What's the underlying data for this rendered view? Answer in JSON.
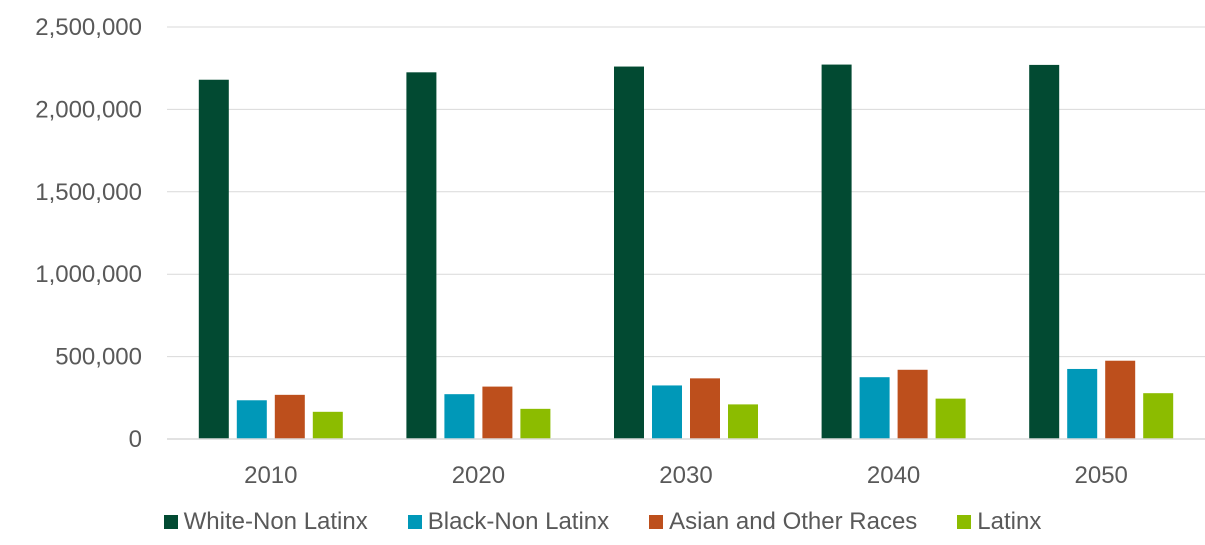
{
  "chart_data": {
    "type": "bar",
    "categories": [
      "2010",
      "2020",
      "2030",
      "2040",
      "2050"
    ],
    "series": [
      {
        "name": "White-Non Latinx",
        "color": "#024a32",
        "values": [
          2180000,
          2225000,
          2260000,
          2272000,
          2270000
        ]
      },
      {
        "name": "Black-Non Latinx",
        "color": "#0098b8",
        "values": [
          235000,
          272000,
          325000,
          375000,
          425000
        ]
      },
      {
        "name": "Asian and Other Races",
        "color": "#bd4f1c",
        "values": [
          268000,
          318000,
          368000,
          420000,
          475000
        ]
      },
      {
        "name": "Latinx",
        "color": "#8cbc00",
        "values": [
          165000,
          183000,
          210000,
          245000,
          278000
        ]
      }
    ],
    "ylim": [
      0,
      2500000
    ],
    "yticks": [
      0,
      500000,
      1000000,
      1500000,
      2000000,
      2500000
    ],
    "ytick_labels": [
      "0",
      "500,000",
      "1,000,000",
      "1,500,000",
      "2,000,000",
      "2,500,000"
    ],
    "grid": true,
    "legend_position": "bottom"
  }
}
